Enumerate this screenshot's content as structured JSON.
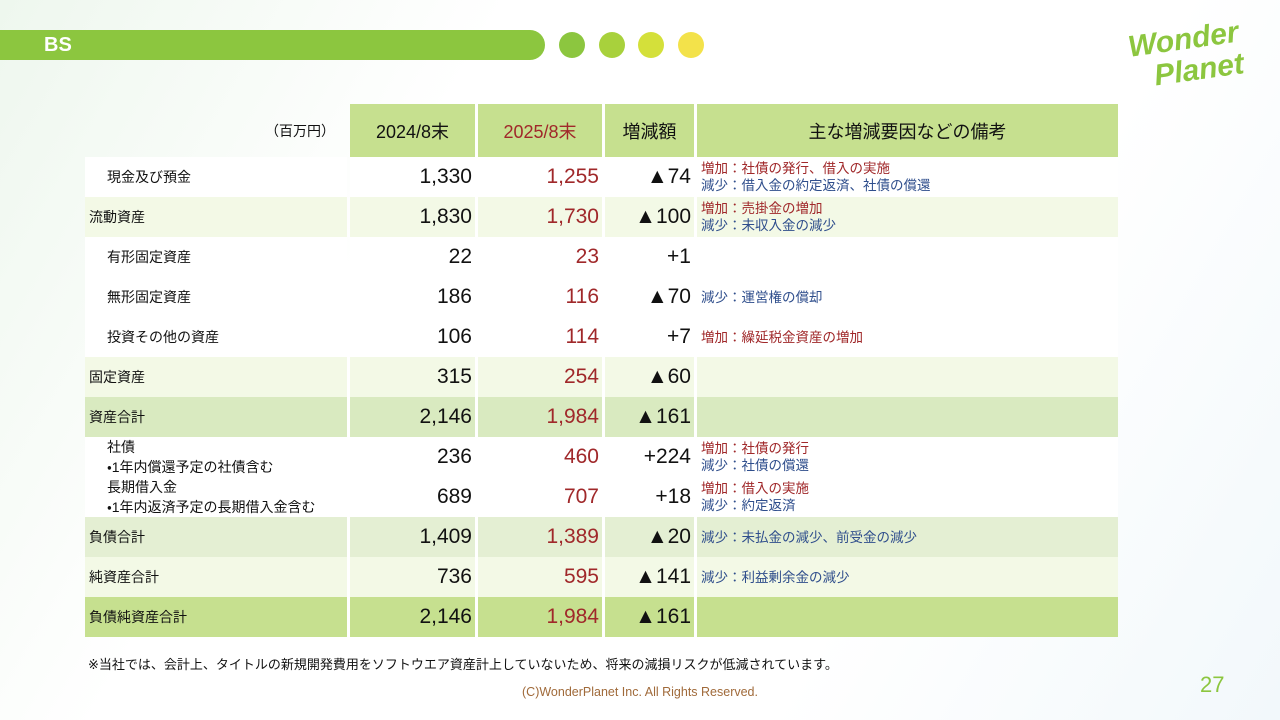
{
  "header": {
    "title": "BS",
    "logo": [
      "Wonder",
      "Planet"
    ]
  },
  "table": {
    "unit": "（百万円）",
    "columns": [
      "2024/8末",
      "2025/8末",
      "増減額",
      "主な増減要因などの備考"
    ],
    "rows": [
      {
        "label": "現金及び預金",
        "v2024": "1,330",
        "v2025": "1,255",
        "diff": "▲74",
        "notes": {
          "increase": "増加：社債の発行、借入の実施",
          "decrease": "減少：借入金の約定返済、社債の償還"
        }
      },
      {
        "label": "流動資産",
        "v2024": "1,830",
        "v2025": "1,730",
        "diff": "▲100",
        "notes": {
          "increase": "増加：売掛金の増加",
          "decrease": "減少：未収入金の減少"
        }
      },
      {
        "label": "有形固定資産",
        "v2024": "22",
        "v2025": "23",
        "diff": "+1"
      },
      {
        "label": "無形固定資産",
        "v2024": "186",
        "v2025": "116",
        "diff": "▲70",
        "notes": {
          "decrease": "減少：運営権の償却"
        }
      },
      {
        "label": "投資その他の資産",
        "v2024": "106",
        "v2025": "114",
        "diff": "+7",
        "notes": {
          "increase": "増加：繰延税金資産の増加"
        }
      },
      {
        "label": "固定資産",
        "v2024": "315",
        "v2025": "254",
        "diff": "▲60"
      },
      {
        "label": "資産合計",
        "v2024": "2,146",
        "v2025": "1,984",
        "diff": "▲161"
      },
      {
        "label": "社債",
        "sublabel": "・1年内償還予定の社債含む",
        "v2024": "236",
        "v2025": "460",
        "diff": "+224",
        "notes": {
          "increase": "増加：社債の発行",
          "decrease": "減少：社債の償還"
        }
      },
      {
        "label": "長期借入金",
        "sublabel": "・1年内返済予定の長期借入金含む",
        "v2024": "689",
        "v2025": "707",
        "diff": "+18",
        "notes": {
          "increase": "増加：借入の実施",
          "decrease": "減少：約定返済"
        }
      },
      {
        "label": "負債合計",
        "v2024": "1,409",
        "v2025": "1,389",
        "diff": "▲20",
        "notes": {
          "decrease": "減少：未払金の減少、前受金の減少"
        }
      },
      {
        "label": "純資産合計",
        "v2024": "736",
        "v2025": "595",
        "diff": "▲141",
        "notes": {
          "decrease": "減少：利益剰余金の減少"
        }
      },
      {
        "label": "負債純資産合計",
        "v2024": "2,146",
        "v2025": "1,984",
        "diff": "▲161"
      }
    ]
  },
  "footnote": "※当社では、会計上、タイトルの新規開発費用をソフトウエア資産計上していないため、将来の減損リスクが低減されています。",
  "copyright": "(C)WonderPlanet Inc.  All Rights Reserved.",
  "page_number": "27"
}
